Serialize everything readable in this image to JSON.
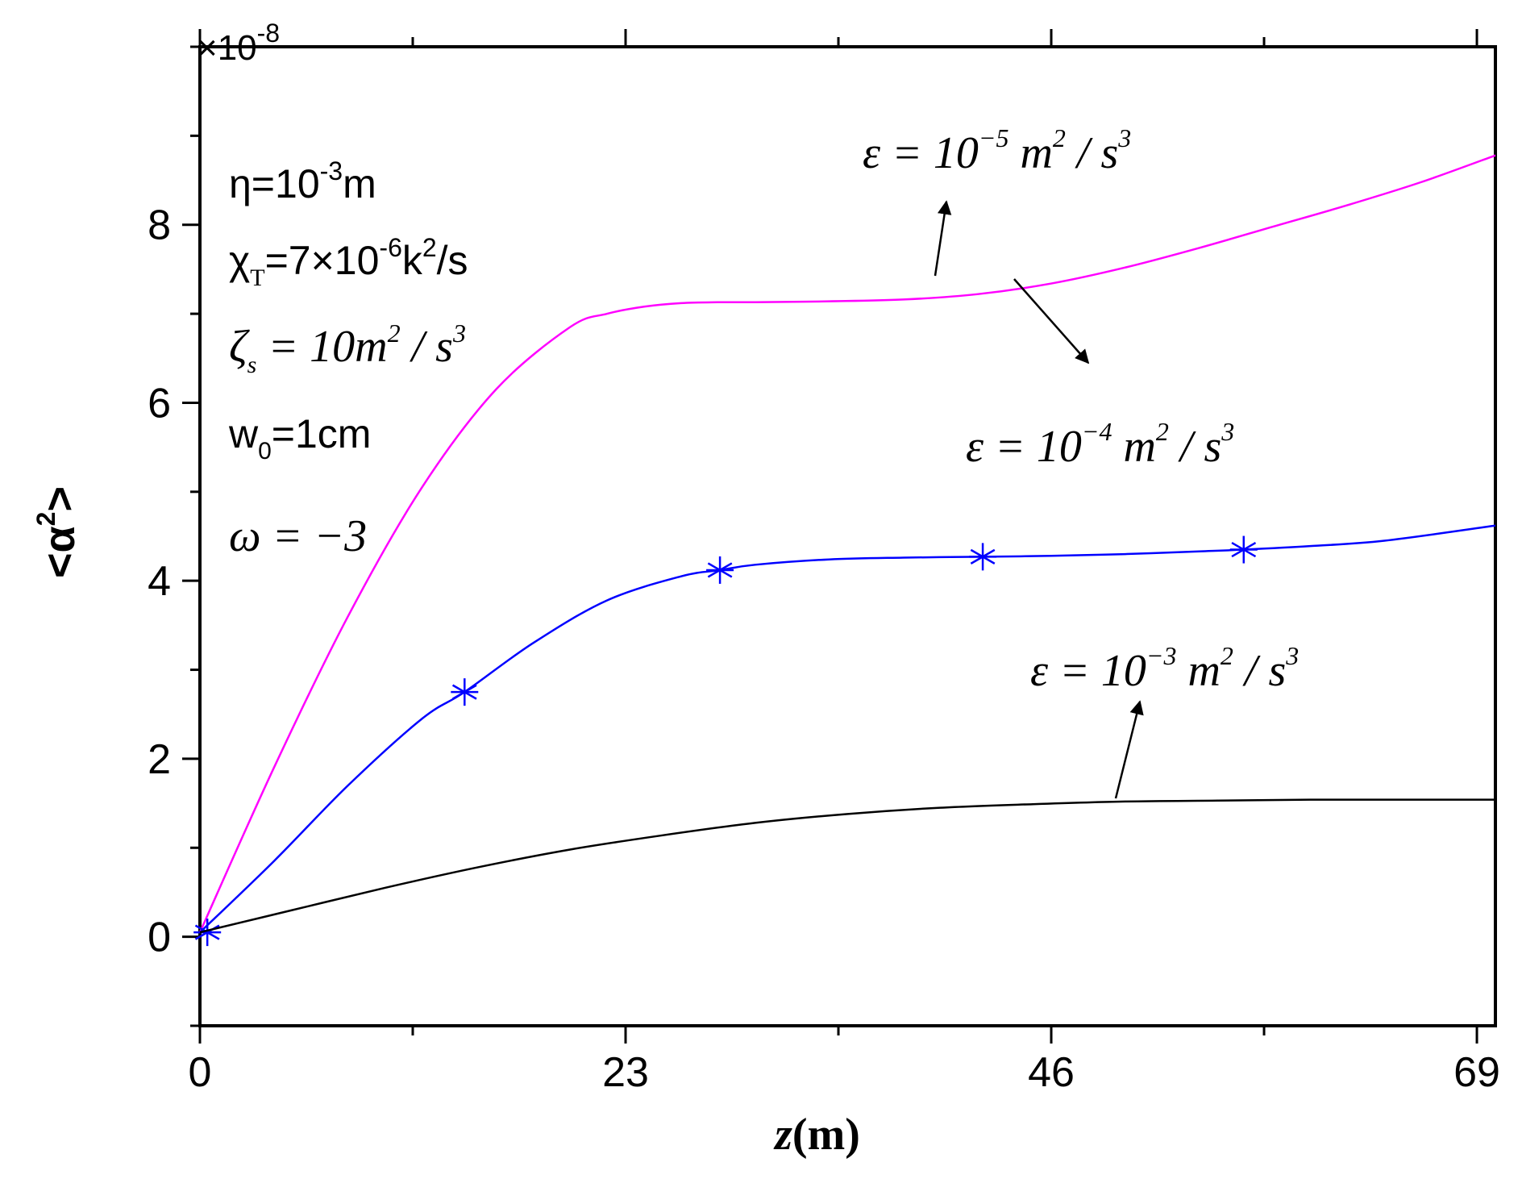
{
  "chart_data": {
    "type": "line",
    "xlabel": "z",
    "xlabel_unit": "(m)",
    "ylabel": "<α",
    "ylabel_sup": "2",
    "ylabel_end": ">",
    "y_multiplier": "×10",
    "y_multiplier_exp": "-8",
    "xlim": [
      0,
      70
    ],
    "ylim": [
      -1,
      10
    ],
    "x_ticks": [
      0,
      23,
      46,
      69
    ],
    "y_ticks": [
      0,
      2,
      4,
      6,
      8
    ],
    "grid": false,
    "colors": {
      "magenta": "#ff00ff",
      "blue": "#0000ff",
      "black": "#000000"
    },
    "series": [
      {
        "color": "#ff00ff",
        "marker": "none",
        "x": [
          0,
          4,
          8,
          12,
          16,
          20,
          22,
          24,
          26,
          28,
          30,
          34,
          38,
          42,
          46,
          50,
          54,
          58,
          62,
          66,
          70
        ],
        "y": [
          0.05,
          1.9,
          3.6,
          5.05,
          6.15,
          6.85,
          7.0,
          7.08,
          7.12,
          7.13,
          7.13,
          7.14,
          7.16,
          7.22,
          7.34,
          7.52,
          7.74,
          7.98,
          8.22,
          8.48,
          8.78
        ]
      },
      {
        "color": "#0000ff",
        "marker": "asterisk",
        "x": [
          0,
          4,
          8,
          12,
          14.3,
          18,
          22,
          26,
          28.1,
          30,
          34,
          38,
          42.3,
          46,
          50,
          54,
          56.4,
          60,
          64,
          70
        ],
        "y": [
          0.05,
          0.85,
          1.7,
          2.45,
          2.75,
          3.3,
          3.78,
          4.05,
          4.12,
          4.18,
          4.24,
          4.26,
          4.27,
          4.28,
          4.3,
          4.33,
          4.35,
          4.39,
          4.45,
          4.62
        ],
        "marker_x": [
          0.4,
          14.3,
          28.1,
          42.3,
          56.4
        ],
        "marker_y": [
          0.05,
          2.75,
          4.12,
          4.27,
          4.35
        ]
      },
      {
        "color": "#000000",
        "marker": "none",
        "x": [
          0,
          5,
          10,
          15,
          20,
          25,
          30,
          35,
          40,
          45,
          50,
          55,
          60,
          65,
          70
        ],
        "y": [
          0.05,
          0.3,
          0.55,
          0.78,
          0.98,
          1.14,
          1.28,
          1.38,
          1.45,
          1.49,
          1.52,
          1.53,
          1.54,
          1.54,
          1.54
        ]
      }
    ],
    "annotations": {
      "curve_labels": [
        {
          "lead": "ε = 10",
          "exp": "−5",
          "mid": " m",
          "exp2": "2",
          "tail": " / s",
          "exp3": "3"
        },
        {
          "lead": "ε = 10",
          "exp": "−4",
          "mid": " m",
          "exp2": "2",
          "tail": " / s",
          "exp3": "3"
        },
        {
          "lead": "ε = 10",
          "exp": "−3",
          "mid": " m",
          "exp2": "2",
          "tail": " / s",
          "exp3": "3"
        }
      ],
      "params": {
        "eta": {
          "lead": "η=10",
          "exp": "-3",
          "tail": "m"
        },
        "chi": {
          "lead": "χ",
          "sub": "T",
          "mid": "=7×10",
          "exp": "-6",
          "mid2": "k",
          "exp2": "2",
          "tail": "/s"
        },
        "zeta": {
          "lead": "ζ",
          "sub": "s",
          "mid": " = 10m",
          "exp": "2",
          "tail": " / s",
          "exp2": "3"
        },
        "w0": {
          "lead": "w",
          "sub": "0",
          "tail": "=1cm"
        },
        "omega": {
          "text": "ω = −3"
        }
      }
    }
  }
}
